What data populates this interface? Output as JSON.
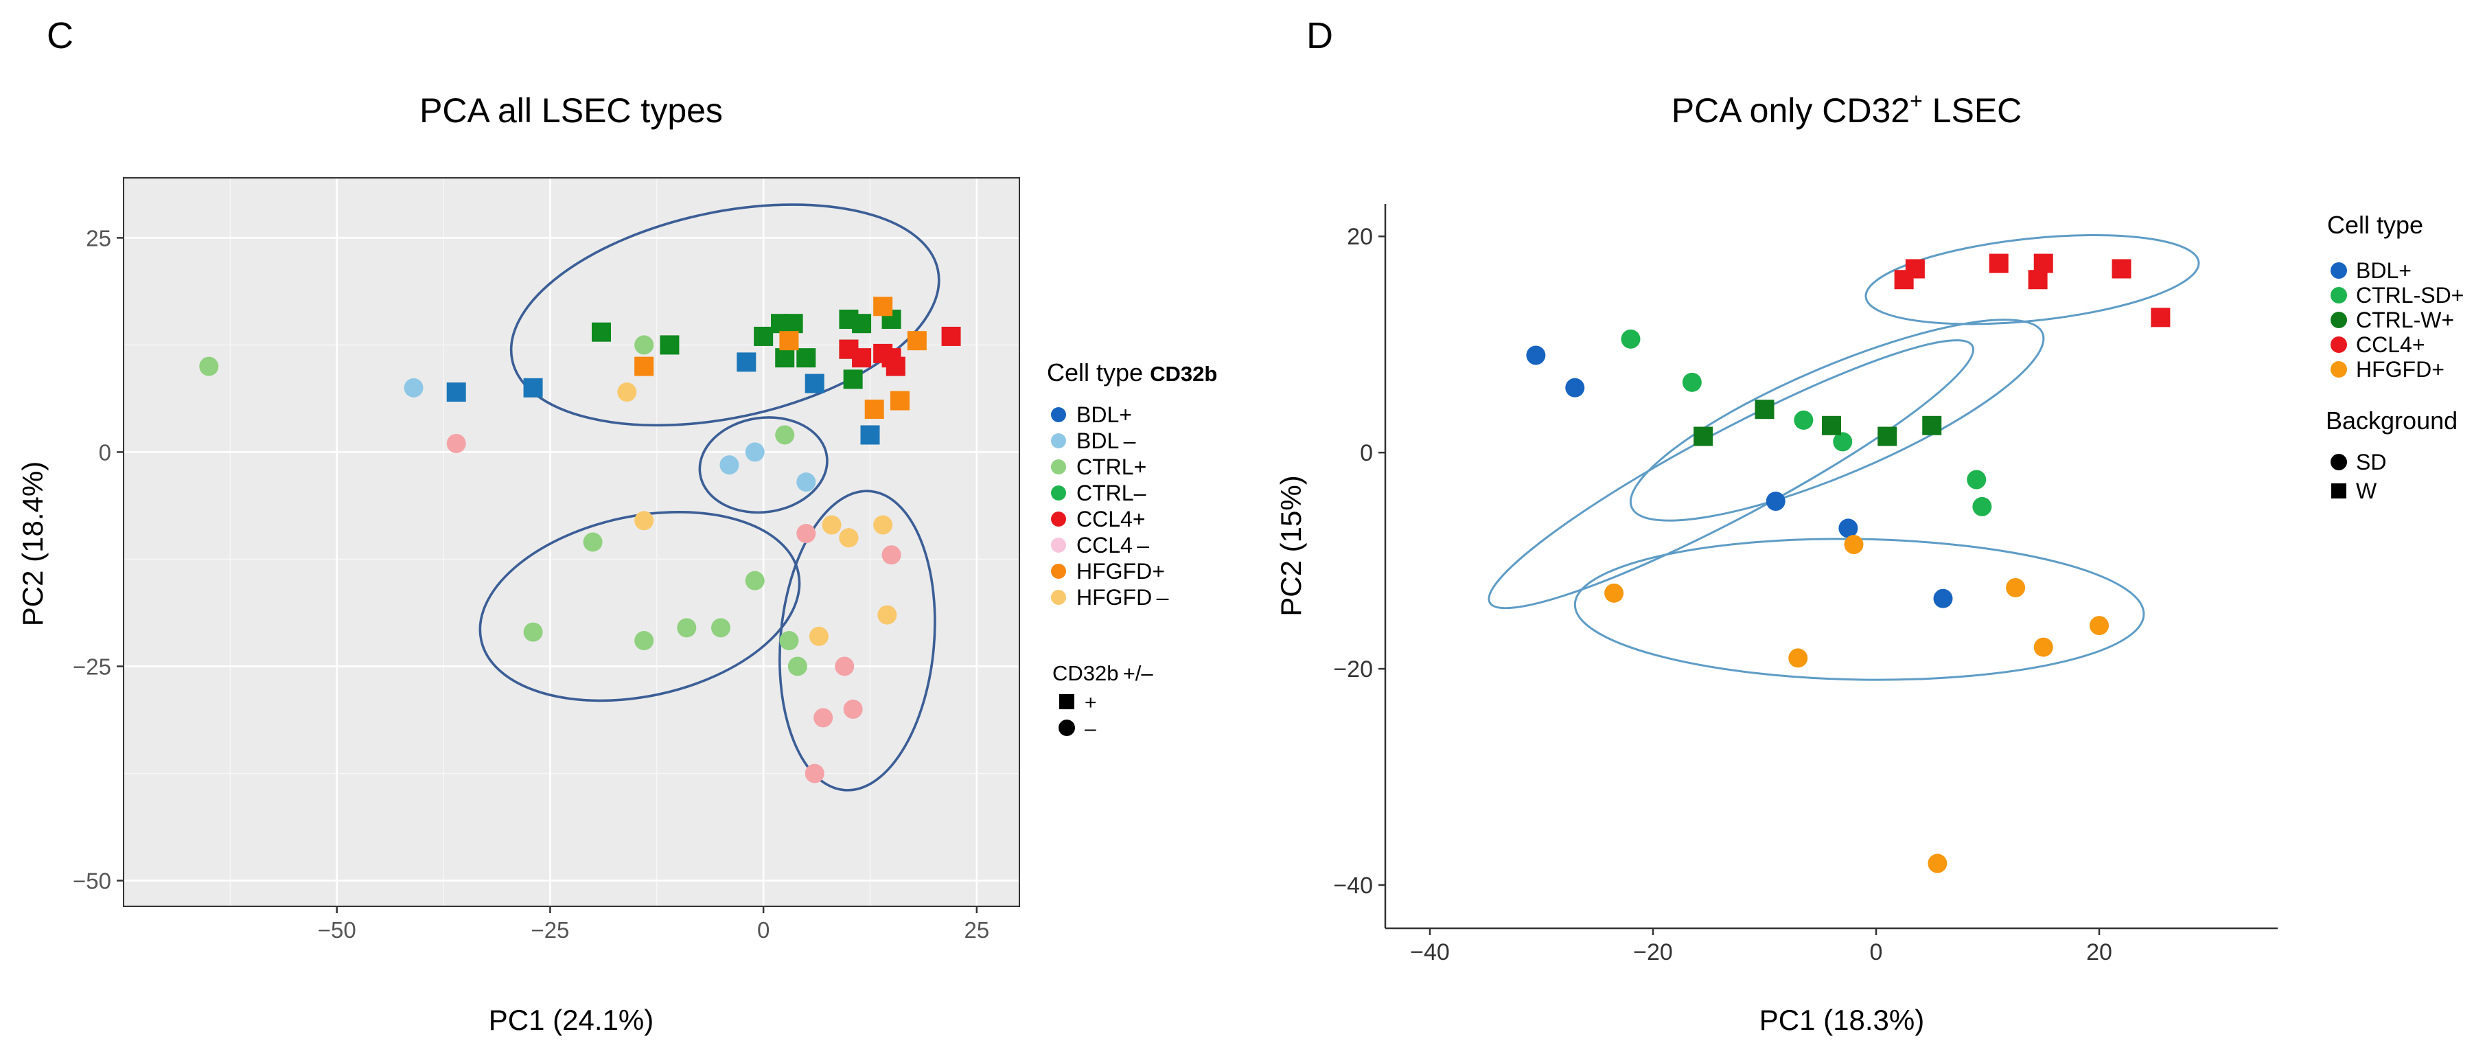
{
  "chart_data": [
    {
      "type": "scatter",
      "panel_letter": "C",
      "title": "PCA all LSEC types",
      "xlabel": "PC1 (24.1%)",
      "ylabel": "PC2 (18.4%)",
      "xlim": [
        -75,
        30
      ],
      "ylim": [
        -53,
        32
      ],
      "xticks": [
        -50,
        -25,
        0,
        25
      ],
      "yticks": [
        25,
        0,
        -25,
        -50
      ],
      "xtick_labels": [
        "−50",
        "−25",
        "0",
        "25"
      ],
      "ytick_labels": [
        "25",
        "0",
        "−25",
        "−50"
      ],
      "grid": true,
      "background": "#ebebeb",
      "legend_position": "right",
      "legend_title": "Cell type",
      "legend_title_suffix": "CD32b",
      "legend": [
        {
          "label": "BDL+",
          "color": "#1764c0"
        },
        {
          "label": "BDL –",
          "color": "#8ec7e6"
        },
        {
          "label": "CTRL+",
          "color": "#8fd17e"
        },
        {
          "label": "CTRL–",
          "color": "#1db34e"
        },
        {
          "label": "CCL4+",
          "color": "#e8181e"
        },
        {
          "label": "CCL4 –",
          "color": "#f8c4dc"
        },
        {
          "label": "HFGFD+",
          "color": "#f7870e"
        },
        {
          "label": "HFGFD –",
          "color": "#f9c86b"
        }
      ],
      "shape_legend_title": "CD32b +/–",
      "shape_legend": [
        {
          "label": "+",
          "shape": "square"
        },
        {
          "label": "–",
          "shape": "circle"
        }
      ],
      "series": [
        {
          "name": "CTRL+ (circle)",
          "color": "#8fd17e",
          "shape": "circle",
          "points": [
            [
              -65,
              10
            ],
            [
              -14,
              12.5
            ],
            [
              -20,
              -10.5
            ],
            [
              -27,
              -21
            ],
            [
              -14,
              -22
            ],
            [
              -9,
              -20.5
            ],
            [
              -5,
              -20.5
            ],
            [
              -1,
              -15
            ],
            [
              2.5,
              2
            ],
            [
              3,
              -22
            ],
            [
              4,
              -25
            ]
          ]
        },
        {
          "name": "BDL– (circle)",
          "color": "#8ec7e6",
          "shape": "circle",
          "points": [
            [
              -41,
              7.5
            ],
            [
              -4,
              -1.5
            ],
            [
              -1,
              0
            ],
            [
              5,
              -3.5
            ]
          ]
        },
        {
          "name": "CCL4– (circle)",
          "color": "#f4a2a6",
          "shape": "circle",
          "points": [
            [
              -36,
              1
            ],
            [
              5,
              -9.5
            ],
            [
              10,
              -10
            ],
            [
              15,
              -12
            ],
            [
              9.5,
              -25
            ],
            [
              10.5,
              -30
            ],
            [
              7,
              -31
            ],
            [
              6,
              -37.5
            ]
          ]
        },
        {
          "name": "HFGFD– (circle)",
          "color": "#f9c86b",
          "shape": "circle",
          "points": [
            [
              -16,
              7
            ],
            [
              -14,
              -8
            ],
            [
              8,
              -8.5
            ],
            [
              10,
              -10
            ],
            [
              14,
              -8.5
            ],
            [
              14.5,
              -19
            ],
            [
              6.5,
              -21.5
            ]
          ]
        },
        {
          "name": "BDL+ (square)",
          "color": "#1a76b8",
          "shape": "square",
          "points": [
            [
              -36,
              7
            ],
            [
              -27,
              7.5
            ],
            [
              -2,
              10.5
            ],
            [
              6,
              8
            ],
            [
              12.5,
              2
            ]
          ]
        },
        {
          "name": "CTRL– (square)",
          "color": "#0e8a1e",
          "shape": "square",
          "points": [
            [
              -19,
              14
            ],
            [
              -11,
              12.5
            ],
            [
              0,
              13.5
            ],
            [
              2,
              15
            ],
            [
              3.5,
              15
            ],
            [
              5,
              11
            ],
            [
              10,
              15.5
            ],
            [
              11.5,
              15
            ],
            [
              15,
              15.5
            ],
            [
              10,
              12
            ],
            [
              10.5,
              8.5
            ],
            [
              2.5,
              11
            ]
          ]
        },
        {
          "name": "CCL4+ (square)",
          "color": "#e8181e",
          "shape": "square",
          "points": [
            [
              10,
              12
            ],
            [
              11.5,
              11
            ],
            [
              14,
              11.5
            ],
            [
              15,
              11
            ],
            [
              15.5,
              10
            ],
            [
              22,
              13.5
            ]
          ]
        },
        {
          "name": "HFGFD+ (square)",
          "color": "#f7870e",
          "shape": "square",
          "points": [
            [
              -14,
              10
            ],
            [
              3,
              13
            ],
            [
              14,
              17
            ],
            [
              18,
              13
            ],
            [
              16,
              6
            ],
            [
              13,
              5
            ]
          ]
        }
      ],
      "ellipses": [
        {
          "center": [
            -4.5,
            16
          ],
          "radii": [
            25.5,
            12
          ],
          "rotation_deg": -12
        },
        {
          "center": [
            0,
            -1.5
          ],
          "radii": [
            7.5,
            5.5
          ],
          "rotation_deg": -8
        },
        {
          "center": [
            -14.5,
            -18
          ],
          "radii": [
            19,
            10.5
          ],
          "rotation_deg": -12
        },
        {
          "center": [
            11,
            -22
          ],
          "radii": [
            9,
            17.5
          ],
          "rotation_deg": 5
        }
      ]
    },
    {
      "type": "scatter",
      "panel_letter": "D",
      "title": "PCA only CD32",
      "title_superscript": "+",
      "title_suffix": " LSEC",
      "xlabel": "PC1 (18.3%)",
      "ylabel": "PC2 (15%)",
      "xlim": [
        -44,
        36
      ],
      "ylim": [
        -44,
        23
      ],
      "xticks": [
        -40,
        -20,
        0,
        20
      ],
      "yticks": [
        20,
        0,
        -20,
        -40
      ],
      "xtick_labels": [
        "−40",
        "−20",
        "0",
        "20"
      ],
      "ytick_labels": [
        "20",
        "0",
        "−20",
        "−40"
      ],
      "grid": false,
      "background": "#ffffff",
      "legend_position": "right",
      "legend_title": "Cell type",
      "legend": [
        {
          "label": "BDL+",
          "color": "#1764c0"
        },
        {
          "label": "CTRL-SD+",
          "color": "#1db34e"
        },
        {
          "label": "CTRL-W+",
          "color": "#0e7a1a"
        },
        {
          "label": "CCL4+",
          "color": "#e8181e"
        },
        {
          "label": "HFGFD+",
          "color": "#f7980e"
        }
      ],
      "shape_legend_title": "Background",
      "shape_legend": [
        {
          "label": "SD",
          "shape": "circle"
        },
        {
          "label": "W",
          "shape": "square"
        }
      ],
      "series": [
        {
          "name": "BDL+ (SD)",
          "color": "#1764c0",
          "shape": "circle",
          "points": [
            [
              -30.5,
              9
            ],
            [
              -27,
              6
            ],
            [
              -9,
              -4.5
            ],
            [
              -2.5,
              -7
            ],
            [
              6,
              -13.5
            ]
          ]
        },
        {
          "name": "CTRL-SD+ (SD)",
          "color": "#1db34e",
          "shape": "circle",
          "points": [
            [
              -22,
              10.5
            ],
            [
              -16.5,
              6.5
            ],
            [
              -6.5,
              3
            ],
            [
              -3,
              1
            ],
            [
              9,
              -2.5
            ],
            [
              9.5,
              -5
            ]
          ]
        },
        {
          "name": "CTRL-W+ (W)",
          "color": "#0e7a1a",
          "shape": "square",
          "points": [
            [
              -15.5,
              1.5
            ],
            [
              -10,
              4
            ],
            [
              -4,
              2.5
            ],
            [
              1,
              1.5
            ],
            [
              5,
              2.5
            ]
          ]
        },
        {
          "name": "CCL4+ (W)",
          "color": "#e8181e",
          "shape": "square",
          "points": [
            [
              2.5,
              16
            ],
            [
              3.5,
              17
            ],
            [
              11,
              17.5
            ],
            [
              14.5,
              16
            ],
            [
              15,
              17.5
            ],
            [
              22,
              17
            ],
            [
              25.5,
              12.5
            ]
          ]
        },
        {
          "name": "HFGFD+ (SD)",
          "color": "#f7980e",
          "shape": "circle",
          "points": [
            [
              -23.5,
              -13
            ],
            [
              -7,
              -19
            ],
            [
              -2,
              -8.5
            ],
            [
              12.5,
              -12.5
            ],
            [
              15,
              -18
            ],
            [
              20,
              -16
            ],
            [
              5.5,
              -38
            ]
          ]
        }
      ],
      "ellipses": [
        {
          "center": [
            -13,
            -2
          ],
          "radii": [
            24.5,
            4
          ],
          "rotation_deg": -28
        },
        {
          "center": [
            -3.5,
            3
          ],
          "radii": [
            20,
            5
          ],
          "rotation_deg": -23
        },
        {
          "center": [
            14,
            16
          ],
          "radii": [
            15,
            3.8
          ],
          "rotation_deg": -6
        },
        {
          "center": [
            -1.5,
            -14.5
          ],
          "radii": [
            25.5,
            6.5
          ],
          "rotation_deg": 1
        }
      ]
    }
  ]
}
